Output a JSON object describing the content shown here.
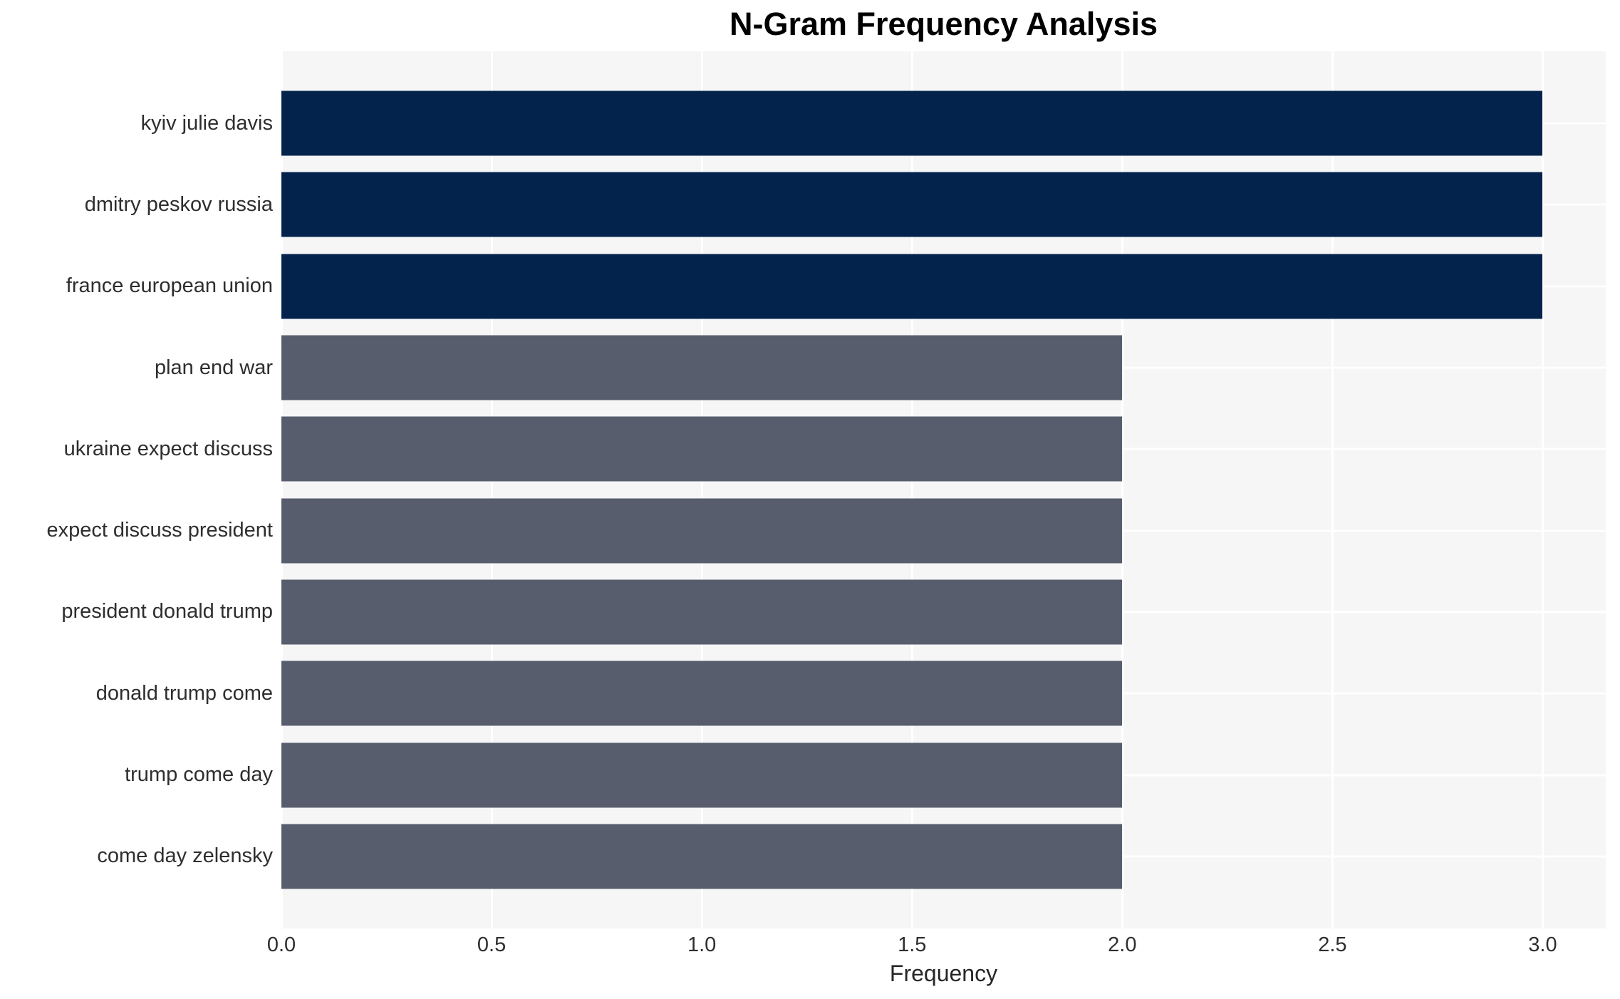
{
  "chart": {
    "title": "N-Gram Frequency Analysis",
    "xlabel": "Frequency"
  },
  "chart_data": {
    "type": "bar",
    "orientation": "horizontal",
    "title": "N-Gram Frequency Analysis",
    "xlabel": "Frequency",
    "ylabel": "",
    "categories": [
      "kyiv julie davis",
      "dmitry peskov russia",
      "france european union",
      "plan end war",
      "ukraine expect discuss",
      "expect discuss president",
      "president donald trump",
      "donald trump come",
      "trump come day",
      "come day zelensky"
    ],
    "values": [
      3,
      3,
      3,
      2,
      2,
      2,
      2,
      2,
      2,
      2
    ],
    "bar_colors": [
      "#03234c",
      "#03234c",
      "#03234c",
      "#575d6c",
      "#575d6c",
      "#575d6c",
      "#575d6c",
      "#575d6c",
      "#575d6c",
      "#575d6c"
    ],
    "xtick_labels": [
      "0.0",
      "0.5",
      "1.0",
      "1.5",
      "2.0",
      "2.5",
      "3.0"
    ],
    "xtick_values": [
      0,
      0.5,
      1,
      1.5,
      2,
      2.5,
      3
    ],
    "xlim": [
      0,
      3.15
    ],
    "grid": true,
    "legend": false,
    "colors": {
      "bar_high": "#03234c",
      "bar_low": "#575d6c",
      "plot_background": "#f6f6f7",
      "gridline": "#ffffff",
      "tick_text": "#2e2e2e",
      "title_text": "#000000",
      "page_background": "#ffffff"
    }
  }
}
